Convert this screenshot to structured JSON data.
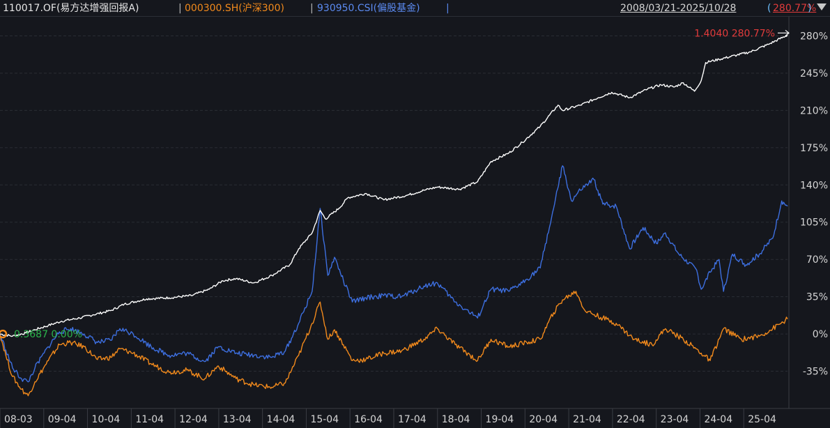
{
  "header": {
    "series_fund": "110017.OF(易方达增强回报A)",
    "sep": "|",
    "series_index": "000300.SH(沪深300)",
    "series_bench": "930950.CSI(偏股基金)",
    "date_range": "2008/03/21-2025/10/28",
    "return_pct": "280.77%",
    "dropdown_icon": "triangle-down-icon"
  },
  "annotations": {
    "end_label": "1.4040 280.77%",
    "start_label": "0.3687 0.00%"
  },
  "colors": {
    "background": "#15171d",
    "fund": "#ffffff",
    "index": "#f28a1c",
    "bench": "#3d6fe0",
    "grid": "#2a2d34",
    "axis_text": "#d6d6d6",
    "return_red": "#e23b3b",
    "start_green": "#2bb34a"
  },
  "chart_data": {
    "type": "line",
    "x_ticks": [
      "08-03",
      "09-04",
      "10-04",
      "11-04",
      "12-04",
      "13-04",
      "14-04",
      "15-04",
      "16-04",
      "17-04",
      "18-04",
      "19-04",
      "20-04",
      "21-04",
      "22-04",
      "23-04",
      "24-04",
      "25-04"
    ],
    "y_ticks": [
      "280%",
      "245%",
      "210%",
      "175%",
      "140%",
      "105%",
      "70%",
      "35%",
      "0%",
      "-35%"
    ],
    "ylim": [
      -70,
      298
    ],
    "xlim": [
      2008.22,
      2025.83
    ],
    "grid": true,
    "series": [
      {
        "name": "110017.OF(易方达增强回报A)",
        "color": "#ffffff",
        "points": [
          [
            2008.22,
            0
          ],
          [
            2008.5,
            -2
          ],
          [
            2008.8,
            1
          ],
          [
            2009.0,
            4
          ],
          [
            2009.3,
            8
          ],
          [
            2009.6,
            12
          ],
          [
            2010.0,
            15
          ],
          [
            2010.3,
            18
          ],
          [
            2010.7,
            22
          ],
          [
            2011.0,
            28
          ],
          [
            2011.5,
            33
          ],
          [
            2012.0,
            34
          ],
          [
            2012.5,
            36
          ],
          [
            2012.9,
            42
          ],
          [
            2013.2,
            50
          ],
          [
            2013.5,
            52
          ],
          [
            2013.9,
            48
          ],
          [
            2014.3,
            55
          ],
          [
            2014.7,
            65
          ],
          [
            2014.9,
            80
          ],
          [
            2015.2,
            95
          ],
          [
            2015.38,
            116
          ],
          [
            2015.5,
            108
          ],
          [
            2015.8,
            118
          ],
          [
            2016.0,
            128
          ],
          [
            2016.4,
            132
          ],
          [
            2016.8,
            126
          ],
          [
            2017.3,
            130
          ],
          [
            2017.7,
            135
          ],
          [
            2018.0,
            138
          ],
          [
            2018.5,
            136
          ],
          [
            2018.9,
            143
          ],
          [
            2019.2,
            162
          ],
          [
            2019.6,
            170
          ],
          [
            2019.9,
            180
          ],
          [
            2020.3,
            195
          ],
          [
            2020.7,
            215
          ],
          [
            2020.8,
            210
          ],
          [
            2021.2,
            215
          ],
          [
            2021.6,
            222
          ],
          [
            2021.9,
            227
          ],
          [
            2022.3,
            222
          ],
          [
            2022.7,
            230
          ],
          [
            2023.0,
            234
          ],
          [
            2023.3,
            232
          ],
          [
            2023.5,
            236
          ],
          [
            2023.75,
            228
          ],
          [
            2023.9,
            238
          ],
          [
            2024.0,
            255
          ],
          [
            2024.3,
            258
          ],
          [
            2024.7,
            262
          ],
          [
            2025.0,
            265
          ],
          [
            2025.4,
            272
          ],
          [
            2025.83,
            280.77
          ]
        ]
      },
      {
        "name": "000300.SH(沪深300)",
        "color": "#f28a1c",
        "points": [
          [
            2008.22,
            0
          ],
          [
            2008.35,
            -20
          ],
          [
            2008.5,
            -40
          ],
          [
            2008.7,
            -52
          ],
          [
            2008.85,
            -58
          ],
          [
            2009.0,
            -45
          ],
          [
            2009.3,
            -25
          ],
          [
            2009.55,
            -10
          ],
          [
            2009.8,
            -8
          ],
          [
            2010.1,
            -12
          ],
          [
            2010.4,
            -24
          ],
          [
            2010.7,
            -22
          ],
          [
            2010.9,
            -14
          ],
          [
            2011.2,
            -18
          ],
          [
            2011.6,
            -28
          ],
          [
            2012.0,
            -36
          ],
          [
            2012.4,
            -34
          ],
          [
            2012.8,
            -42
          ],
          [
            2013.1,
            -30
          ],
          [
            2013.5,
            -42
          ],
          [
            2013.9,
            -48
          ],
          [
            2014.3,
            -50
          ],
          [
            2014.6,
            -46
          ],
          [
            2014.9,
            -20
          ],
          [
            2015.2,
            10
          ],
          [
            2015.38,
            30
          ],
          [
            2015.55,
            -5
          ],
          [
            2015.7,
            4
          ],
          [
            2015.9,
            -10
          ],
          [
            2016.1,
            -25
          ],
          [
            2016.4,
            -24
          ],
          [
            2016.8,
            -18
          ],
          [
            2017.2,
            -16
          ],
          [
            2017.7,
            -5
          ],
          [
            2018.0,
            5
          ],
          [
            2018.4,
            -10
          ],
          [
            2018.9,
            -25
          ],
          [
            2019.2,
            -5
          ],
          [
            2019.6,
            -12
          ],
          [
            2020.0,
            -8
          ],
          [
            2020.3,
            -5
          ],
          [
            2020.6,
            20
          ],
          [
            2020.8,
            32
          ],
          [
            2021.1,
            40
          ],
          [
            2021.3,
            22
          ],
          [
            2021.7,
            15
          ],
          [
            2022.0,
            10
          ],
          [
            2022.4,
            -5
          ],
          [
            2022.8,
            -10
          ],
          [
            2023.1,
            5
          ],
          [
            2023.5,
            -5
          ],
          [
            2023.9,
            -18
          ],
          [
            2024.1,
            -25
          ],
          [
            2024.4,
            5
          ],
          [
            2024.8,
            -5
          ],
          [
            2025.2,
            -2
          ],
          [
            2025.5,
            5
          ],
          [
            2025.83,
            14
          ]
        ]
      },
      {
        "name": "930950.CSI(偏股基金)",
        "color": "#3d6fe0",
        "points": [
          [
            2008.22,
            0
          ],
          [
            2008.35,
            -15
          ],
          [
            2008.5,
            -32
          ],
          [
            2008.7,
            -42
          ],
          [
            2008.85,
            -45
          ],
          [
            2009.0,
            -32
          ],
          [
            2009.3,
            -12
          ],
          [
            2009.55,
            2
          ],
          [
            2009.8,
            5
          ],
          [
            2010.1,
            0
          ],
          [
            2010.4,
            -8
          ],
          [
            2010.7,
            -6
          ],
          [
            2010.9,
            5
          ],
          [
            2011.2,
            0
          ],
          [
            2011.6,
            -12
          ],
          [
            2012.0,
            -20
          ],
          [
            2012.4,
            -18
          ],
          [
            2012.8,
            -26
          ],
          [
            2013.1,
            -12
          ],
          [
            2013.5,
            -18
          ],
          [
            2013.9,
            -20
          ],
          [
            2014.3,
            -22
          ],
          [
            2014.6,
            -16
          ],
          [
            2014.9,
            10
          ],
          [
            2015.2,
            40
          ],
          [
            2015.38,
            118
          ],
          [
            2015.55,
            55
          ],
          [
            2015.7,
            72
          ],
          [
            2015.9,
            50
          ],
          [
            2016.1,
            30
          ],
          [
            2016.4,
            34
          ],
          [
            2016.8,
            36
          ],
          [
            2017.2,
            35
          ],
          [
            2017.7,
            45
          ],
          [
            2018.0,
            48
          ],
          [
            2018.4,
            30
          ],
          [
            2018.9,
            15
          ],
          [
            2019.2,
            42
          ],
          [
            2019.6,
            40
          ],
          [
            2019.9,
            48
          ],
          [
            2020.3,
            62
          ],
          [
            2020.6,
            118
          ],
          [
            2020.8,
            158
          ],
          [
            2021.0,
            125
          ],
          [
            2021.2,
            135
          ],
          [
            2021.5,
            145
          ],
          [
            2021.7,
            122
          ],
          [
            2022.0,
            120
          ],
          [
            2022.3,
            80
          ],
          [
            2022.6,
            100
          ],
          [
            2022.9,
            85
          ],
          [
            2023.1,
            95
          ],
          [
            2023.4,
            75
          ],
          [
            2023.8,
            60
          ],
          [
            2023.9,
            42
          ],
          [
            2024.1,
            58
          ],
          [
            2024.3,
            70
          ],
          [
            2024.4,
            40
          ],
          [
            2024.6,
            75
          ],
          [
            2024.9,
            65
          ],
          [
            2025.2,
            75
          ],
          [
            2025.5,
            90
          ],
          [
            2025.7,
            125
          ],
          [
            2025.83,
            120
          ]
        ]
      }
    ]
  }
}
